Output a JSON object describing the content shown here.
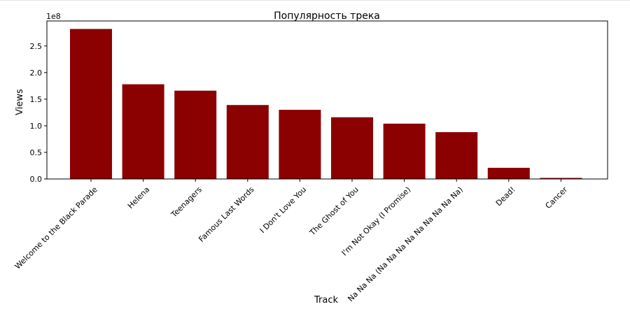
{
  "chart_data": {
    "type": "bar",
    "title": "Популярность трека",
    "xlabel": "Track",
    "ylabel": "Views",
    "offset_label": "1e8",
    "categories": [
      "Welcome to the Black Parade",
      "Helena",
      "Teenagers",
      "Famous Last Words",
      "I Don't Love You",
      "The Ghost of You",
      "I'm Not Okay (I Promise)",
      "Na Na Na (Na Na Na Na Na Na Na Na Na)",
      "Dead!",
      "Cancer"
    ],
    "values": [
      2.82,
      1.78,
      1.66,
      1.39,
      1.3,
      1.16,
      1.04,
      0.88,
      0.21,
      0.02
    ],
    "ylim": [
      0,
      2.97
    ],
    "yticks": [
      "0.0",
      "0.5",
      "1.0",
      "1.5",
      "2.0",
      "2.5"
    ],
    "bar_color": "#8b0000",
    "grid": false
  }
}
